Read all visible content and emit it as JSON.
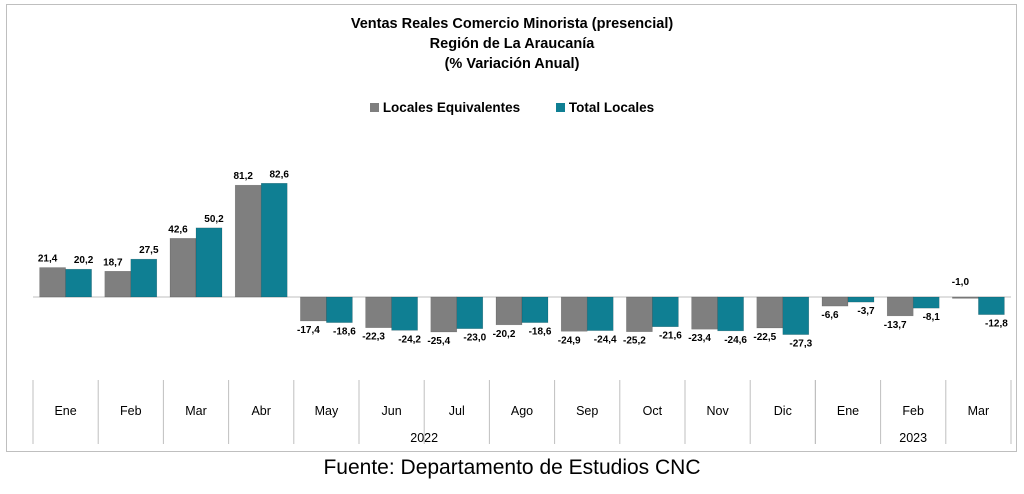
{
  "chart_data": {
    "type": "bar",
    "title": "Ventas Reales Comercio Minorista (presencial)",
    "subtitle": "Región de La Araucanía",
    "subtitle2": "(% Variación Anual)",
    "categories": [
      "Ene",
      "Feb",
      "Mar",
      "Abr",
      "May",
      "Jun",
      "Jul",
      "Ago",
      "Sep",
      "Oct",
      "Nov",
      "Dic",
      "Ene",
      "Feb",
      "Mar"
    ],
    "groups": [
      {
        "label": "2022",
        "start": 0,
        "end": 11
      },
      {
        "label": "2023",
        "start": 12,
        "end": 14
      }
    ],
    "series": [
      {
        "name": "Locales Equivalentes",
        "color": "#7f7f7f",
        "values": [
          21.4,
          18.7,
          42.6,
          81.2,
          -17.4,
          -22.3,
          -25.4,
          -20.2,
          -24.9,
          -25.2,
          -23.4,
          -22.5,
          -6.6,
          -13.7,
          -1.0
        ],
        "labels": [
          "21,4",
          "18,7",
          "42,6",
          "81,2",
          "-17,4",
          "-22,3",
          "-25,4",
          "-20,2",
          "-24,9",
          "-25,2",
          "-23,4",
          "-22,5",
          "-6,6",
          "-13,7",
          "-1,0"
        ]
      },
      {
        "name": "Total Locales",
        "color": "#0f7f93",
        "values": [
          20.2,
          27.5,
          50.2,
          82.6,
          -18.6,
          -24.2,
          -23.0,
          -18.6,
          -24.4,
          -21.6,
          -24.6,
          -27.3,
          -3.7,
          -8.1,
          -12.8
        ],
        "labels": [
          "20,2",
          "27,5",
          "50,2",
          "82,6",
          "-18,6",
          "-24,2",
          "-23,0",
          "-18,6",
          "-24,4",
          "-21,6",
          "-24,6",
          "-27,3",
          "-3,7",
          "-8,1",
          "-12,8"
        ]
      }
    ],
    "legend_position": "top-center",
    "grid": false
  },
  "source": "Fuente: Departamento de Estudios CNC"
}
